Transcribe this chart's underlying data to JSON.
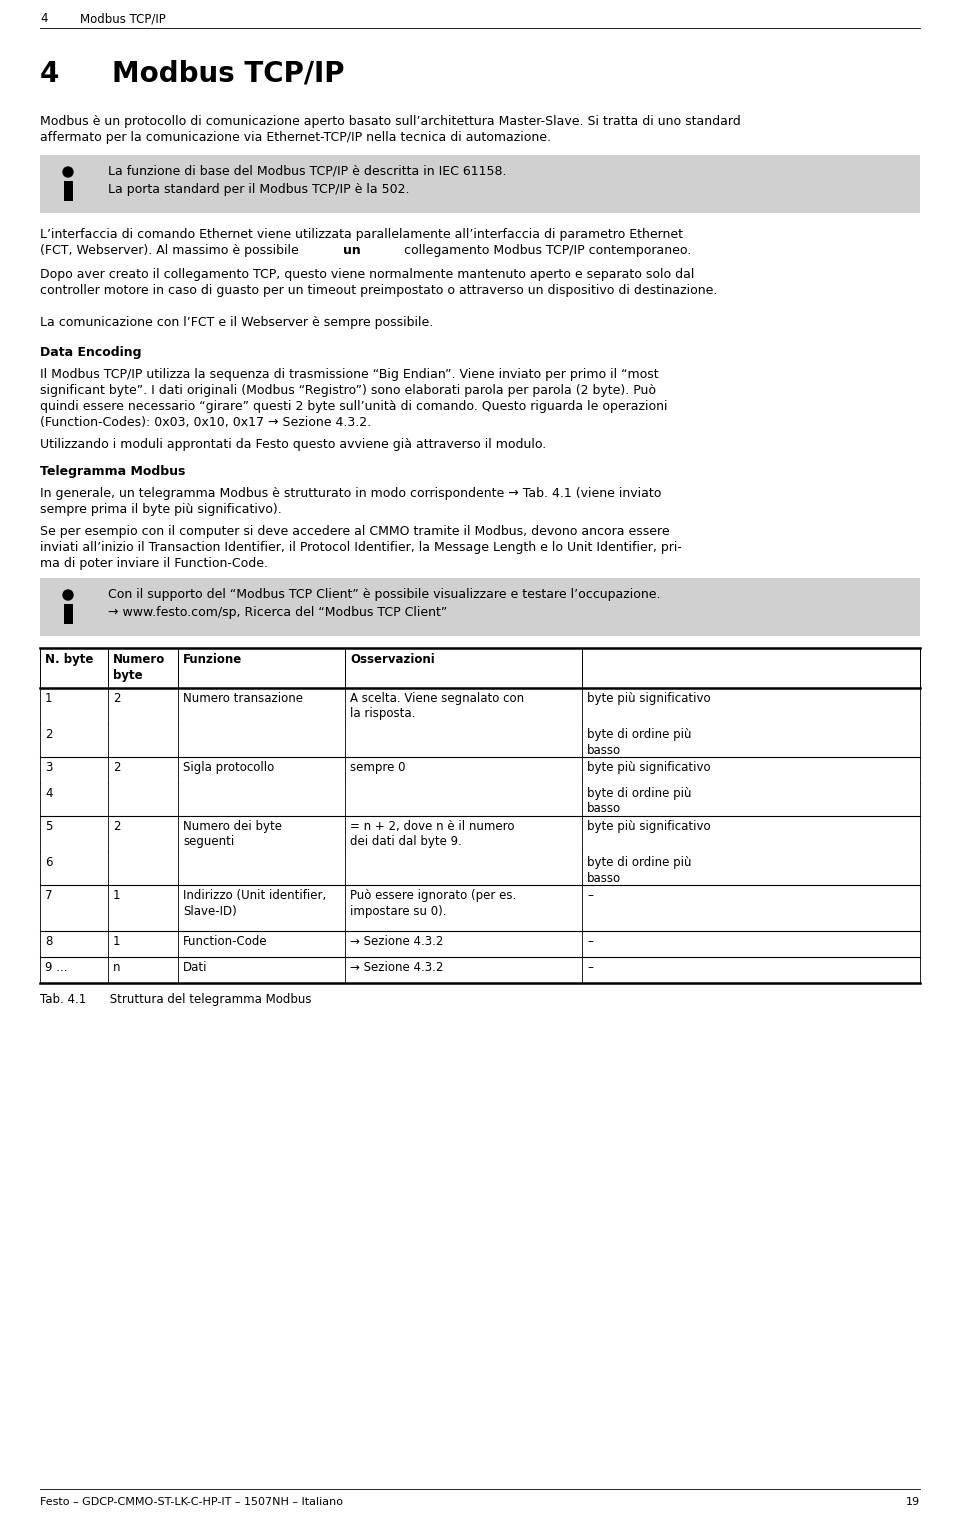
{
  "bg_color": "#ffffff",
  "header_fontsize": 8.5,
  "chapter_title_fontsize": 20,
  "body_fontsize": 9.0,
  "small_fontsize": 8.5,
  "para1": "Modbus è un protocollo di comunicazione aperto basato sull’architettura Master-Slave. Si tratta di uno standard affermato per la comunicazione via Ethernet-TCP/IP nella tecnica di automazione.",
  "info_box1_line1": "La funzione di base del Modbus TCP/IP è descritta in IEC 61158.",
  "info_box1_line2": "La porta standard per il Modbus TCP/IP è la 502.",
  "para2_line1": "L’interfaccia di comando Ethernet viene utilizzata parallelamente all’interfaccia di parametro Ethernet",
  "para2_line2a": "(FCT, Webserver). Al massimo è possibile ",
  "para2_bold": "un",
  "para2_line2c": " collegamento Modbus TCP/IP contemporaneo.",
  "para3": "Dopo aver creato il collegamento TCP, questo viene normalmente mantenuto aperto e separato solo dal controller motore in caso di guasto per un timeout preimpostato o attraverso un dispositivo di destinazione.",
  "para4": "La comunicazione con l’FCT e il Webserver è sempre possibile.",
  "section_data_encoding": "Data Encoding",
  "para_de1_line1": "Il Modbus TCP/IP utilizza la sequenza di trasmissione “Big Endian”. Viene inviato per primo il “most",
  "para_de1_line2": "significant byte”. I dati originali (Modbus “Registro”) sono elaborati parola per parola (2 byte). Può",
  "para_de1_line3": "quindi essere necessario “girare” questi 2 byte sull’unità di comando. Questo riguarda le operazioni",
  "para_de1_line4": "(Function-Codes): 0x03, 0x10, 0x17 → Sezione 4.3.2.",
  "para_de2": "Utilizzando i moduli approntati da Festo questo avviene già attraverso il modulo.",
  "section_telegramma": "Telegramma Modbus",
  "para_tele1_line1": "In generale, un telegramma Modbus è strutturato in modo corrispondente → Tab. 4.1 (viene inviato",
  "para_tele1_line2": "sempre prima il byte più significativo).",
  "para_tele2_line1": "Se per esempio con il computer si deve accedere al CMMO tramite il Modbus, devono ancora essere",
  "para_tele2_line2": "inviati all’inizio il Transaction Identifier, il Protocol Identifier, la Message Length e lo Unit Identifier, pri-",
  "para_tele2_line3": "ma di poter inviare il Function-Code.",
  "info_box2_line1": "Con il supporto del “Modbus TCP Client” è possibile visualizzare e testare l’occupazione.",
  "info_box2_line2": "→ www.festo.com/sp, Ricerca del “Modbus TCP Client”",
  "footer_text": "Festo – GDCP-CMMO-ST-LK-C-HP-IT – 1507NH – Italiano",
  "footer_page": "19",
  "table_caption": "Tab. 4.1  Struttura del telegramma Modbus"
}
